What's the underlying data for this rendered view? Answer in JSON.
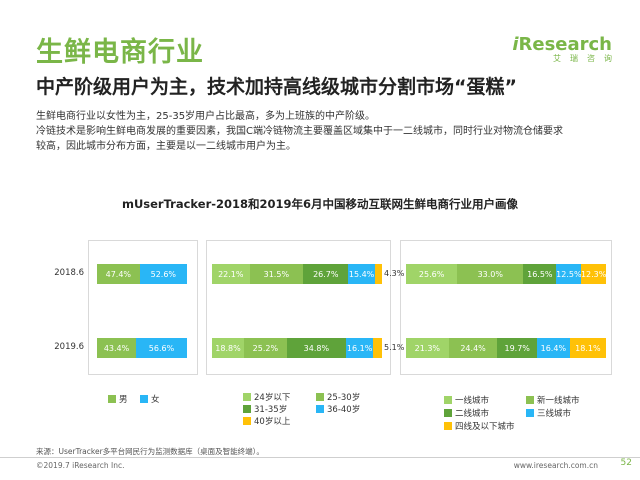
{
  "header": {
    "title": "生鲜电商行业",
    "subtitle": "中产阶级用户为主，技术加持高线级城市分割市场“蛋糕”",
    "paragraph": [
      "生鲜电商行业以女性为主，25-35岁用户占比最高，多为上班族的中产阶级。",
      "冷链技术是影响生鲜电商发展的重要因素，我国C端冷链物流主要覆盖区域集中于一二线城市，同时行业对物流仓储要求",
      "较高，因此城市分布方面，主要是以一二线城市用户为主。"
    ]
  },
  "logo": {
    "i": "i",
    "name": "Research",
    "sub": "艾瑞咨询"
  },
  "chart_data": {
    "type": "bar",
    "title": "mUserTracker-2018和2019年6月中国移动互联网生鲜电商行业用户画像",
    "categories": [
      "2018.6",
      "2019.6"
    ],
    "panels": [
      {
        "name": "gender",
        "series": [
          {
            "name": "男",
            "color": "#8cc152",
            "values": [
              47.4,
              43.4
            ],
            "labels": [
              "47.4%",
              "43.4%"
            ]
          },
          {
            "name": "女",
            "color": "#29b6f6",
            "values": [
              52.6,
              56.6
            ],
            "labels": [
              "52.6%",
              "56.6%"
            ]
          }
        ]
      },
      {
        "name": "age",
        "series": [
          {
            "name": "24岁以下",
            "color": "#a0d468",
            "values": [
              22.1,
              18.8
            ],
            "labels": [
              "22.1%",
              "18.8%"
            ]
          },
          {
            "name": "25-30岁",
            "color": "#8cc152",
            "values": [
              31.5,
              25.2
            ],
            "labels": [
              "31.5%",
              "25.2%"
            ]
          },
          {
            "name": "31-35岁",
            "color": "#5fa33a",
            "values": [
              26.7,
              34.8
            ],
            "labels": [
              "26.7%",
              "34.8%"
            ]
          },
          {
            "name": "36-40岁",
            "color": "#29b6f6",
            "values": [
              15.4,
              16.1
            ],
            "labels": [
              "15.4%",
              "16.1%"
            ]
          },
          {
            "name": "40岁以上",
            "color": "#ffc107",
            "values": [
              4.3,
              5.1
            ],
            "labels": [
              "4.3%",
              "5.1%"
            ]
          }
        ]
      },
      {
        "name": "city",
        "series": [
          {
            "name": "一线城市",
            "color": "#a0d468",
            "values": [
              25.6,
              21.3
            ],
            "labels": [
              "25.6%",
              "21.3%"
            ]
          },
          {
            "name": "新一线城市",
            "color": "#8cc152",
            "values": [
              33.0,
              24.4
            ],
            "labels": [
              "33.0%",
              "24.4%"
            ]
          },
          {
            "name": "二线城市",
            "color": "#5fa33a",
            "values": [
              16.5,
              19.7
            ],
            "labels": [
              "16.5%",
              "19.7%"
            ]
          },
          {
            "name": "三线城市",
            "color": "#29b6f6",
            "values": [
              12.5,
              16.4
            ],
            "labels": [
              "12.5%",
              "16.4%"
            ]
          },
          {
            "name": "四线及以下城市",
            "color": "#ffc107",
            "values": [
              12.3,
              18.1
            ],
            "labels": [
              "12.3%",
              "18.1%"
            ]
          }
        ]
      }
    ]
  },
  "legend_texts": {
    "gender": [
      "男",
      "女"
    ],
    "age": [
      "24岁以下",
      "25-30岁",
      "31-35岁",
      "36-40岁",
      "40岁以上"
    ],
    "city": [
      "一线城市",
      "新一线城市",
      "二线城市",
      "三线城市",
      "四线及以下城市"
    ]
  },
  "footer": {
    "source": "来源：UserTracker多平台网民行为监测数据库（桌面及智能终端）。",
    "copyright": "©2019.7 iResearch Inc.",
    "website": "www.iresearch.com.cn",
    "page": "52"
  }
}
